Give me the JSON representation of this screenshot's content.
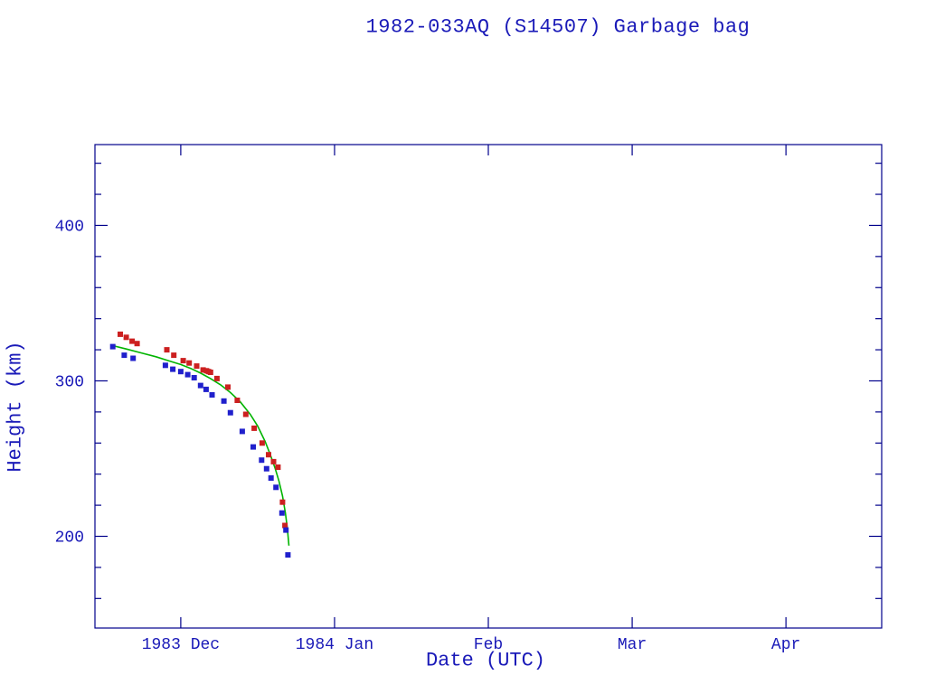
{
  "page": {
    "background": "#ffffff"
  },
  "colors": {
    "text": "#1a1ab8",
    "frame": "#00008b",
    "red_marker": "#cc2020",
    "blue_marker": "#2020cc",
    "green_line": "#00b400"
  },
  "chart_data": {
    "type": "scatter",
    "title": "1982-033AQ (S14507) Garbage bag",
    "xlabel": "Date (UTC)",
    "ylabel": "Height (km)",
    "grid": false,
    "legend": "none",
    "x_axis": {
      "unit": "days since 1983-12-01",
      "lim": [
        -17.3,
        141.3
      ],
      "ticks": [
        {
          "value": 0,
          "label": "1983 Dec"
        },
        {
          "value": 31,
          "label": "1984 Jan"
        },
        {
          "value": 62,
          "label": "Feb"
        },
        {
          "value": 91,
          "label": "Mar"
        },
        {
          "value": 122,
          "label": "Apr"
        }
      ]
    },
    "y_axis": {
      "lim": [
        141,
        452
      ],
      "major_ticks": [
        200,
        300,
        400
      ],
      "minor_step": 20
    },
    "series": [
      {
        "id": "red-squares",
        "marker": "square",
        "color_key": "red_marker",
        "points": [
          [
            -12.2,
            330
          ],
          [
            -11.0,
            328
          ],
          [
            -9.8,
            325.5
          ],
          [
            -8.8,
            324
          ],
          [
            -2.8,
            320
          ],
          [
            -1.4,
            316.5
          ],
          [
            0.5,
            313
          ],
          [
            1.7,
            311.5
          ],
          [
            3.2,
            309.5
          ],
          [
            4.5,
            307
          ],
          [
            5.2,
            306.5
          ],
          [
            5.6,
            306
          ],
          [
            6.0,
            305.5
          ],
          [
            7.3,
            301.5
          ],
          [
            9.5,
            296
          ],
          [
            11.4,
            287.5
          ],
          [
            13.1,
            278.5
          ],
          [
            14.8,
            269.5
          ],
          [
            16.4,
            260
          ],
          [
            17.7,
            252.5
          ],
          [
            18.7,
            248
          ],
          [
            19.6,
            244.5
          ],
          [
            20.5,
            222
          ],
          [
            21.0,
            207
          ]
        ]
      },
      {
        "id": "blue-squares",
        "marker": "square",
        "color_key": "blue_marker",
        "points": [
          [
            -13.7,
            322
          ],
          [
            -11.4,
            316.5
          ],
          [
            -9.6,
            314.5
          ],
          [
            -3.1,
            310
          ],
          [
            -1.6,
            307.5
          ],
          [
            0.0,
            306
          ],
          [
            1.4,
            304
          ],
          [
            2.7,
            302
          ],
          [
            4.0,
            297
          ],
          [
            5.1,
            294.5
          ],
          [
            6.3,
            291
          ],
          [
            8.7,
            287
          ],
          [
            10.0,
            279.5
          ],
          [
            12.4,
            267.5
          ],
          [
            14.6,
            257.5
          ],
          [
            16.3,
            249
          ],
          [
            17.3,
            243.5
          ],
          [
            18.2,
            237.5
          ],
          [
            19.2,
            231.5
          ],
          [
            20.4,
            215
          ],
          [
            21.2,
            204
          ],
          [
            21.6,
            188
          ]
        ]
      }
    ],
    "fit_line": {
      "id": "green-fit-line",
      "color_key": "green_line",
      "points": [
        [
          -13.5,
          322.5
        ],
        [
          -11,
          320.5
        ],
        [
          -8,
          318
        ],
        [
          -5,
          315.5
        ],
        [
          -2,
          312.5
        ],
        [
          0,
          310.5
        ],
        [
          2,
          308
        ],
        [
          4,
          305
        ],
        [
          6,
          301.5
        ],
        [
          8,
          297.5
        ],
        [
          10,
          292.5
        ],
        [
          12,
          286.5
        ],
        [
          14,
          278.5
        ],
        [
          15.5,
          271
        ],
        [
          17,
          261
        ],
        [
          18,
          253
        ],
        [
          19,
          244
        ],
        [
          19.8,
          235.5
        ],
        [
          20.5,
          226
        ],
        [
          21.1,
          215
        ],
        [
          21.5,
          205
        ],
        [
          21.8,
          194
        ]
      ]
    }
  }
}
